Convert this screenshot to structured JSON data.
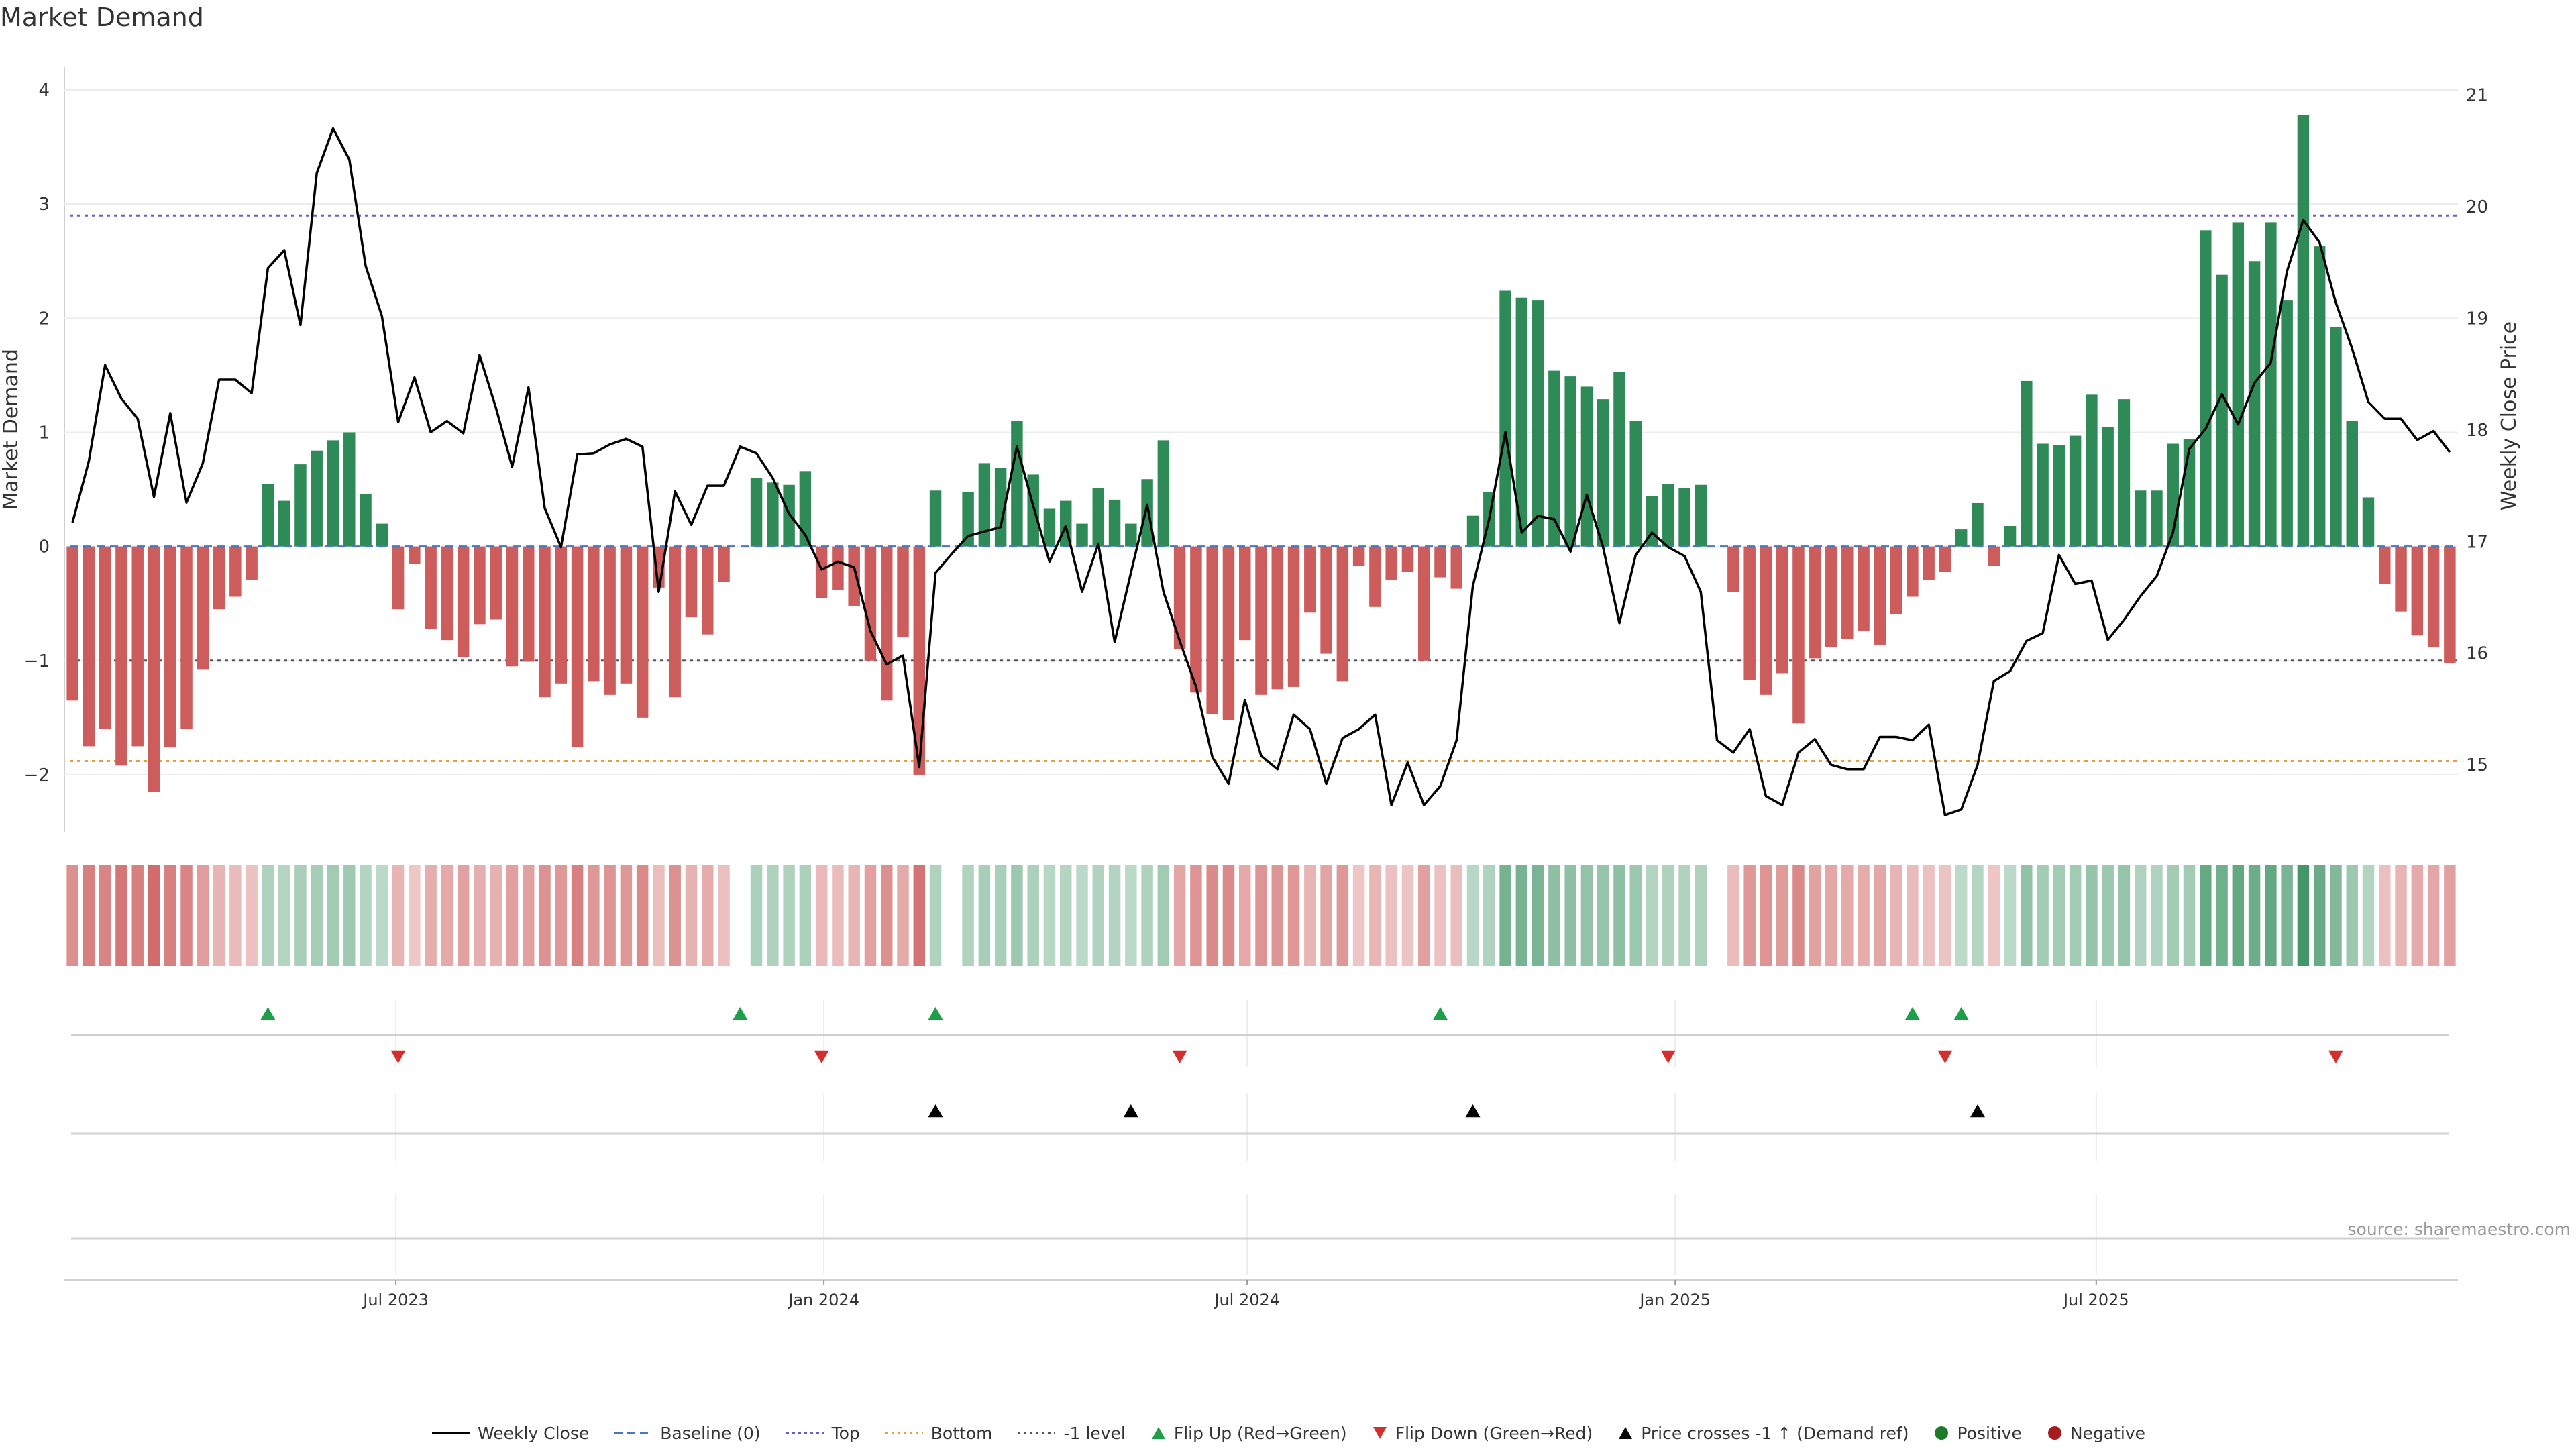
{
  "chart_data": {
    "type": "bar",
    "title": "Market Demand",
    "source": "source: sharemaestro.com",
    "ylabel": "Market Demand",
    "y2label": "Weekly Close Price",
    "ylim": [
      -2.5,
      4.2
    ],
    "y2lim": [
      14.4,
      21.25
    ],
    "yticks": [
      -2,
      -1,
      0,
      1,
      2,
      3,
      4
    ],
    "y2ticks": [
      15,
      16,
      17,
      18,
      19,
      20,
      21
    ],
    "x_start": "2023-02-12",
    "x_interval_days": 7,
    "xticks": [
      {
        "date": "2023-07-01",
        "label": "Jul 2023"
      },
      {
        "date": "2024-01-01",
        "label": "Jan 2024"
      },
      {
        "date": "2024-07-01",
        "label": "Jul 2024"
      },
      {
        "date": "2025-01-01",
        "label": "Jan 2025"
      },
      {
        "date": "2025-07-01",
        "label": "Jul 2025"
      }
    ],
    "reference_lines": {
      "top": 2.9,
      "bottom": -1.88,
      "minus_one_level": -1,
      "baseline": 0
    },
    "colors": {
      "positive": "#2e8b57",
      "negative": "#cd5c5c",
      "close": "#000000",
      "top": "#6a5acd",
      "bottom": "#e8a13a",
      "level": "#555555",
      "baseline": "#4a78b8",
      "flip_up": "#1f9e4a",
      "flip_down": "#d32f2f",
      "cross": "#000000"
    },
    "series": [
      {
        "name": "Market Demand",
        "values": [
          -1.35,
          -1.75,
          -1.6,
          -1.92,
          -1.75,
          -2.15,
          -1.76,
          -1.6,
          -1.08,
          -0.55,
          -0.44,
          -0.29,
          0.55,
          0.4,
          0.72,
          0.84,
          0.93,
          1.0,
          0.46,
          0.2,
          -0.55,
          -0.15,
          -0.72,
          -0.82,
          -0.97,
          -0.68,
          -0.64,
          -1.05,
          -1.01,
          -1.32,
          -1.2,
          -1.76,
          -1.18,
          -1.3,
          -1.2,
          -1.5,
          -0.36,
          -1.32,
          -0.62,
          -0.77,
          -0.31,
          0.0,
          0.6,
          0.56,
          0.54,
          0.66,
          -0.45,
          -0.38,
          -0.52,
          -1.0,
          -1.35,
          -0.79,
          -2.0,
          0.49,
          0.0,
          0.48,
          0.73,
          0.69,
          1.1,
          0.63,
          0.33,
          0.4,
          0.2,
          0.51,
          0.41,
          0.2,
          0.59,
          0.93,
          -0.9,
          -1.28,
          -1.47,
          -1.52,
          -0.82,
          -1.3,
          -1.25,
          -1.23,
          -0.58,
          -0.94,
          -1.18,
          -0.17,
          -0.53,
          -0.29,
          -0.22,
          -1.0,
          -0.27,
          -0.37,
          0.27,
          0.48,
          2.24,
          2.18,
          2.16,
          1.54,
          1.49,
          1.4,
          1.29,
          1.53,
          1.1,
          0.44,
          0.55,
          0.51,
          0.54,
          0.0,
          -0.4,
          -1.17,
          -1.3,
          -1.11,
          -1.55,
          -0.98,
          -0.88,
          -0.81,
          -0.74,
          -0.86,
          -0.59,
          -0.44,
          -0.29,
          -0.22,
          0.15,
          0.38,
          -0.17,
          0.18,
          1.45,
          0.9,
          0.89,
          0.97,
          1.33,
          1.05,
          1.29,
          0.49,
          0.49,
          0.9,
          0.94,
          2.77,
          2.38,
          2.84,
          2.5,
          2.84,
          2.16,
          3.78,
          2.63,
          1.92,
          1.1,
          0.43,
          -0.33,
          -0.57,
          -0.78,
          -0.88,
          -1.02
        ]
      },
      {
        "name": "Weekly Close",
        "axis": "right",
        "values": [
          17.17,
          17.72,
          18.58,
          18.28,
          18.1,
          17.4,
          18.15,
          17.35,
          17.7,
          18.45,
          18.45,
          18.33,
          19.45,
          19.61,
          18.94,
          20.3,
          20.7,
          20.42,
          19.47,
          19.02,
          18.07,
          18.47,
          17.98,
          18.08,
          17.97,
          18.67,
          18.2,
          17.67,
          18.38,
          17.3,
          16.95,
          17.78,
          17.79,
          17.87,
          17.92,
          17.85,
          16.55,
          17.45,
          17.15,
          17.5,
          17.5,
          17.85,
          17.79,
          17.57,
          17.25,
          17.06,
          16.75,
          16.82,
          16.77,
          16.2,
          15.9,
          15.98,
          14.98,
          16.72,
          16.89,
          17.05,
          17.09,
          17.13,
          17.85,
          17.32,
          16.82,
          17.14,
          16.55,
          16.98,
          16.1,
          16.72,
          17.33,
          16.55,
          16.11,
          15.7,
          15.07,
          14.83,
          15.58,
          15.08,
          14.96,
          15.45,
          15.32,
          14.83,
          15.24,
          15.32,
          15.45,
          14.64,
          15.02,
          14.64,
          14.81,
          15.22,
          16.6,
          17.2,
          17.98,
          17.08,
          17.23,
          17.2,
          16.91,
          17.42,
          16.95,
          16.27,
          16.88,
          17.08,
          16.95,
          16.87,
          16.55,
          15.22,
          15.11,
          15.32,
          14.72,
          14.64,
          15.11,
          15.23,
          15.0,
          14.96,
          14.96,
          15.25,
          15.25,
          15.22,
          15.36,
          14.55,
          14.6,
          15.0,
          15.75,
          15.84,
          16.11,
          16.18,
          16.88,
          16.62,
          16.65,
          16.12,
          16.3,
          16.51,
          16.69,
          17.08,
          17.83,
          18.01,
          18.32,
          18.05,
          18.42,
          18.6,
          19.42,
          19.88,
          19.68,
          19.14,
          18.73,
          18.25,
          18.1,
          18.1,
          17.91,
          17.99,
          17.8
        ]
      }
    ],
    "flip_up_weeks": [
      12,
      41,
      53,
      84,
      113,
      116
    ],
    "flip_down_weeks": [
      20,
      46,
      68,
      98,
      115,
      139
    ],
    "price_cross_weeks": [
      53,
      65,
      86,
      117
    ],
    "legend": [
      {
        "key": "close",
        "label": "Weekly Close",
        "kind": "line"
      },
      {
        "key": "baseline",
        "label": "Baseline (0)",
        "kind": "dash"
      },
      {
        "key": "top",
        "label": "Top",
        "kind": "dot"
      },
      {
        "key": "bottom",
        "label": "Bottom",
        "kind": "dot"
      },
      {
        "key": "level",
        "label": "-1 level",
        "kind": "dot"
      },
      {
        "key": "flip_up",
        "label": "Flip Up (Red→Green)",
        "kind": "tri-up"
      },
      {
        "key": "flip_down",
        "label": "Flip Down (Green→Red)",
        "kind": "tri-down"
      },
      {
        "key": "cross",
        "label": "Price crosses -1 ↑ (Demand ref)",
        "kind": "tri-up"
      },
      {
        "key": "positive",
        "label": "Positive",
        "kind": "circle"
      },
      {
        "key": "negative",
        "label": "Negative",
        "kind": "circle"
      }
    ]
  }
}
